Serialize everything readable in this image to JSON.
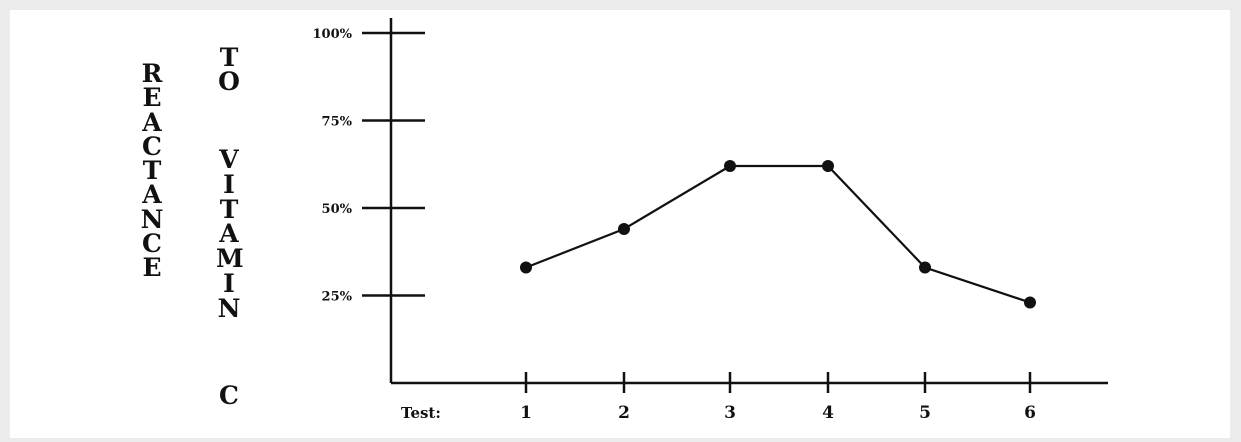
{
  "chart_data": {
    "type": "line",
    "title": "",
    "ylabel_left": "REACTANCE",
    "ylabel_right_words": [
      "TO",
      "VITAMIN",
      "C"
    ],
    "x_prefix": "Test:",
    "categories": [
      "1",
      "2",
      "3",
      "4",
      "5",
      "6"
    ],
    "yticks": [
      "100%",
      "75%",
      "50%",
      "25%"
    ],
    "ylim": [
      0,
      100
    ],
    "series": [
      {
        "values": [
          33,
          44,
          62,
          62,
          33,
          23
        ]
      }
    ],
    "grid": false,
    "marker": "filled-circle",
    "line_color": "#111111"
  }
}
